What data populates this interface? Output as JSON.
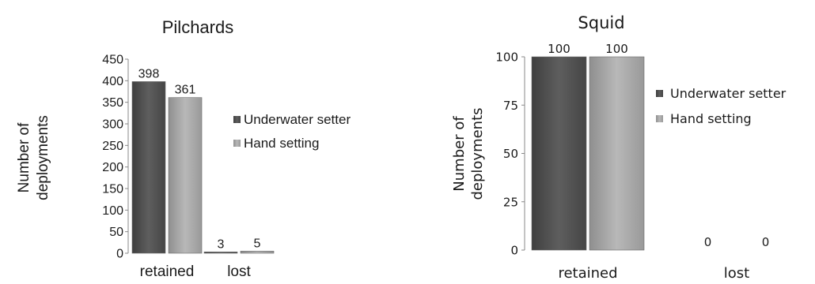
{
  "chart_data": [
    {
      "type": "bar",
      "title": "Pilchards",
      "ylabel": [
        "Number of",
        "deployments"
      ],
      "xlabel": "",
      "categories": [
        "retained",
        "lost"
      ],
      "series": [
        {
          "name": "Underwater setter",
          "values": [
            398,
            3
          ],
          "color": "#555555"
        },
        {
          "name": "Hand setting",
          "values": [
            361,
            5
          ],
          "color": "#a9a9a9"
        }
      ],
      "data_labels": [
        [
          "398",
          "3"
        ],
        [
          "361",
          "5"
        ]
      ],
      "ylim": [
        0,
        450
      ],
      "yticks": [
        0,
        50,
        100,
        150,
        200,
        250,
        300,
        350,
        400,
        450
      ],
      "legend_position": "right"
    },
    {
      "type": "bar",
      "title": "Squid",
      "ylabel": [
        "Number of",
        "deployments"
      ],
      "xlabel": "",
      "categories": [
        "retained",
        "lost"
      ],
      "series": [
        {
          "name": "Underwater setter",
          "values": [
            100,
            0
          ],
          "color": "#555555"
        },
        {
          "name": "Hand setting",
          "values": [
            100,
            0
          ],
          "color": "#a9a9a9"
        }
      ],
      "data_labels": [
        [
          "100",
          "0"
        ],
        [
          "100",
          "0"
        ]
      ],
      "ylim": [
        0,
        100
      ],
      "yticks": [
        0,
        25,
        50,
        75,
        100
      ],
      "legend_position": "right"
    }
  ]
}
